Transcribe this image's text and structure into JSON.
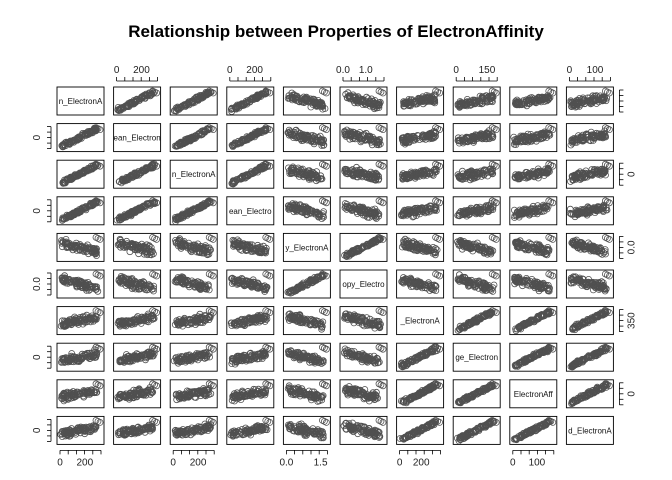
{
  "chart_data": {
    "type": "scatter-matrix",
    "title": "Relationship between Properties of ElectronAffinity",
    "variables": [
      "mean_ElectronAffinity",
      "wtd_mean_ElectronAffinity",
      "gmean_ElectronAffinity",
      "wtd_gmean_ElectronAffinity",
      "entropy_ElectronAffinity",
      "wtd_entropy_ElectronAffinity",
      "range_ElectronAffinity",
      "wtd_range_ElectronAffinity",
      "std_ElectronAffinity",
      "wtd_std_ElectronAffinity"
    ],
    "diagonal_labels": [
      "n_ElectronA",
      "ean_Electron",
      "n_ElectronA",
      "ean_Electro",
      "y_ElectronA",
      "opy_Electro",
      "_ElectronA",
      "ge_Electron",
      "ElectronAff",
      "d_ElectronA"
    ],
    "ranges": [
      [
        0,
        330
      ],
      [
        0,
        330
      ],
      [
        0,
        330
      ],
      [
        0,
        330
      ],
      [
        0,
        1.8
      ],
      [
        0,
        1.8
      ],
      [
        0,
        380
      ],
      [
        0,
        200
      ],
      [
        0,
        170
      ],
      [
        0,
        160
      ]
    ],
    "axis_ticks": {
      "top": [
        {
          "var": 1,
          "labels": [
            "0",
            "200"
          ],
          "values": [
            0,
            200
          ]
        },
        {
          "var": 3,
          "labels": [
            "0",
            "200"
          ],
          "values": [
            0,
            200
          ]
        },
        {
          "var": 5,
          "labels": [
            "0.0",
            "1.0"
          ],
          "values": [
            0,
            1.0
          ]
        },
        {
          "var": 7,
          "labels": [
            "0",
            "150"
          ],
          "values": [
            0,
            150
          ]
        },
        {
          "var": 9,
          "labels": [
            "0",
            "100"
          ],
          "values": [
            0,
            100
          ]
        }
      ],
      "bottom": [
        {
          "var": 0,
          "labels": [
            "0",
            "200"
          ],
          "values": [
            0,
            200
          ]
        },
        {
          "var": 2,
          "labels": [
            "0",
            "200"
          ],
          "values": [
            0,
            200
          ]
        },
        {
          "var": 4,
          "labels": [
            "0.0",
            "1.5"
          ],
          "values": [
            0,
            1.5
          ]
        },
        {
          "var": 6,
          "labels": [
            "0",
            "200"
          ],
          "values": [
            0,
            200
          ]
        },
        {
          "var": 8,
          "labels": [
            "0",
            "100"
          ],
          "values": [
            0,
            100
          ]
        }
      ],
      "left": [
        {
          "var": 1,
          "labels": [
            "0"
          ],
          "values": [
            0
          ]
        },
        {
          "var": 3,
          "labels": [
            "0"
          ],
          "values": [
            0
          ]
        },
        {
          "var": 5,
          "labels": [
            "0.0"
          ],
          "values": [
            0
          ]
        },
        {
          "var": 7,
          "labels": [
            "0"
          ],
          "values": [
            0
          ]
        },
        {
          "var": 9,
          "labels": [
            "0"
          ],
          "values": [
            0
          ]
        }
      ],
      "right": [
        {
          "var": 0,
          "labels": [],
          "values": []
        },
        {
          "var": 2,
          "labels": [
            "0"
          ],
          "values": [
            0
          ]
        },
        {
          "var": 4,
          "labels": [
            "0.0"
          ],
          "values": [
            0
          ]
        },
        {
          "var": 6,
          "labels": [
            "350"
          ],
          "values": [
            350
          ]
        },
        {
          "var": 8,
          "labels": [
            "0"
          ],
          "values": [
            0
          ]
        }
      ]
    },
    "points_per_panel": 90,
    "marker": "open-circle",
    "marker_color": "#505050"
  }
}
